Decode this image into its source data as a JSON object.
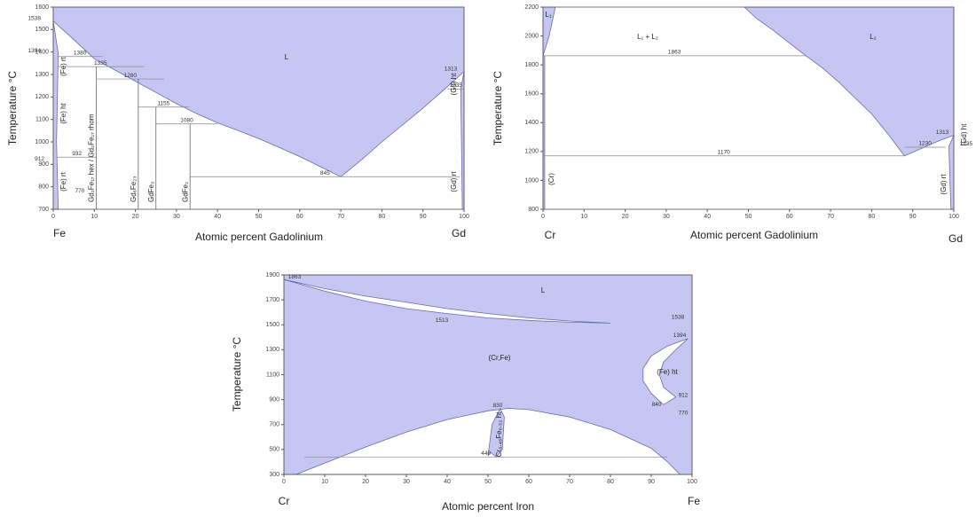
{
  "chart_data": [
    {
      "type": "phase",
      "y_label": "Temperature °C",
      "x_label": "Atomic percent Gadolinium",
      "end_labels": [
        "Fe",
        "Gd"
      ],
      "phase_color": "#c6c6f3",
      "gap_color": "#ffffff",
      "line_color": "#6a6aaa",
      "xlim": [
        0,
        100
      ],
      "ylim": [
        700,
        1600
      ],
      "xticks": [
        0,
        10,
        20,
        30,
        40,
        50,
        60,
        70,
        80,
        90,
        100
      ],
      "yticks": [
        700,
        800,
        900,
        1000,
        1100,
        1200,
        1300,
        1400,
        1500,
        1600
      ],
      "areas": [
        {
          "kind": "phase",
          "x": [
            0,
            0,
            100,
            100,
            95,
            90,
            85,
            80,
            75,
            70,
            65,
            60,
            55,
            50,
            45,
            40,
            35,
            30,
            25,
            20,
            15,
            10,
            5
          ],
          "y": [
            1538,
            1600,
            1600,
            1313,
            1230,
            1150,
            1075,
            1000,
            920,
            845,
            890,
            935,
            975,
            1015,
            1050,
            1085,
            1125,
            1170,
            1220,
            1270,
            1320,
            1370,
            1455
          ]
        },
        {
          "kind": "phase",
          "x": [
            0,
            1.2,
            0.8,
            1.2,
            0
          ],
          "y": [
            1538,
            1394,
            1000,
            700,
            700
          ]
        },
        {
          "kind": "phase",
          "x": [
            100,
            99.2,
            99.6,
            100
          ],
          "y": [
            1313,
            1235,
            700,
            700
          ]
        }
      ],
      "isotherms": [
        {
          "value": 1380,
          "x": [
            1,
            12
          ]
        },
        {
          "value": 1335,
          "x": [
            1,
            22
          ]
        },
        {
          "value": 1280,
          "x": [
            10.5,
            27
          ]
        },
        {
          "value": 1155,
          "x": [
            20.7,
            33
          ]
        },
        {
          "value": 1080,
          "x": [
            25,
            40
          ]
        },
        {
          "value": 932,
          "x": [
            1,
            10.5
          ]
        },
        {
          "value": 845,
          "x": [
            33.3,
            99
          ]
        },
        {
          "value": 1235,
          "x": [
            96,
            100
          ]
        }
      ],
      "compounds": [
        {
          "x": 10.5,
          "top": 1335,
          "label": "Gd₂Fe₁₇ hex  / Gd₂Fe₁₇ rhom"
        },
        {
          "x": 20.7,
          "top": 1280,
          "label": "Gd₆Fe₂₃"
        },
        {
          "x": 25,
          "top": 1155,
          "label": "GdFe₃"
        },
        {
          "x": 33.3,
          "top": 1080,
          "label": "GdFe₂"
        }
      ],
      "temperature_labels": [
        1538,
        1394,
        912,
        1313,
        770
      ],
      "phase_labels": [
        "L",
        "(Fe) rt",
        "(Fe) ht",
        "(Fe) rt",
        "(Gd) ht",
        "(Gd) rt"
      ]
    },
    {
      "type": "phase",
      "y_label": "Temperature °C",
      "x_label": "Atomic percent Gadolinium",
      "end_labels": [
        "Cr",
        "Gd"
      ],
      "phase_color": "#c6c6f3",
      "gap_color": "#ffffff",
      "line_color": "#6a6aaa",
      "xlim": [
        0,
        100
      ],
      "ylim": [
        800,
        2200
      ],
      "xticks": [
        0,
        10,
        20,
        30,
        40,
        50,
        60,
        70,
        80,
        90,
        100
      ],
      "yticks": [
        800,
        1000,
        1200,
        1400,
        1600,
        1800,
        2000,
        2200
      ],
      "areas": [
        {
          "kind": "phase",
          "x": [
            0,
            0,
            3,
            1.5
          ],
          "y": [
            1863,
            2200,
            2200,
            2000
          ]
        },
        {
          "kind": "phase",
          "x": [
            49,
            100,
            100,
            96,
            92,
            88,
            84,
            80,
            76,
            72,
            68,
            64,
            60,
            56,
            52
          ],
          "y": [
            2200,
            2200,
            1313,
            1270,
            1220,
            1170,
            1320,
            1460,
            1570,
            1680,
            1780,
            1863,
            1950,
            2040,
            2120
          ]
        },
        {
          "kind": "phase",
          "x": [
            100,
            98.8,
            99.3,
            100
          ],
          "y": [
            1313,
            1235,
            800,
            800
          ]
        },
        {
          "kind": "phase",
          "x": [
            0,
            0.4,
            0.4,
            0
          ],
          "y": [
            1863,
            1863,
            800,
            800
          ]
        }
      ],
      "isotherms": [
        {
          "value": 1863,
          "x": [
            0,
            64
          ]
        },
        {
          "value": 1170,
          "x": [
            0,
            88
          ]
        },
        {
          "value": 1230,
          "x": [
            88,
            98
          ]
        }
      ],
      "compounds": [],
      "temperature_labels": [
        1313,
        1235
      ],
      "phase_labels": [
        "L₁",
        "L₁   +   L₂",
        "L₂",
        "(Cr)",
        "(Gd) rt",
        "(Gd) ht"
      ]
    },
    {
      "type": "phase",
      "y_label": "Temperature °C",
      "x_label": "Atomic percent Iron",
      "end_labels": [
        "Cr",
        "Fe"
      ],
      "phase_color": "#c6c6f3",
      "gap_color": "#ffffff",
      "line_color": "#6a6aaa",
      "xlim": [
        0,
        100
      ],
      "ylim": [
        300,
        1900
      ],
      "xticks": [
        0,
        10,
        20,
        30,
        40,
        50,
        60,
        70,
        80,
        90,
        100
      ],
      "yticks": [
        300,
        500,
        700,
        900,
        1100,
        1300,
        1500,
        1700,
        1900
      ],
      "areas": [
        {
          "kind": "phase",
          "x": [
            0,
            100,
            100,
            0
          ],
          "y": [
            300,
            300,
            1900,
            1900
          ]
        },
        {
          "kind": "gap",
          "x": [
            0,
            10,
            20,
            30,
            40,
            50,
            60,
            70,
            80,
            70,
            60,
            50,
            40,
            30,
            20,
            10
          ],
          "y": [
            1863,
            1790,
            1730,
            1680,
            1630,
            1590,
            1555,
            1530,
            1513,
            1520,
            1535,
            1555,
            1590,
            1630,
            1690,
            1770
          ]
        },
        {
          "kind": "gap",
          "x": [
            99,
            94,
            90,
            88,
            88,
            90,
            93,
            96,
            93,
            92,
            93,
            96,
            99
          ],
          "y": [
            1390,
            1330,
            1250,
            1150,
            1050,
            950,
            860,
            920,
            1000,
            1100,
            1200,
            1300,
            1390
          ]
        },
        {
          "kind": "gap",
          "x": [
            3,
            10,
            20,
            30,
            40,
            50,
            55,
            60,
            70,
            80,
            90,
            94,
            97
          ],
          "y": [
            300,
            390,
            520,
            640,
            740,
            810,
            830,
            820,
            760,
            660,
            510,
            400,
            300
          ]
        },
        {
          "kind": "phase",
          "x": [
            50,
            51,
            53,
            54,
            53.5,
            52,
            50.5
          ],
          "y": [
            450,
            700,
            830,
            760,
            500,
            440,
            480
          ]
        }
      ],
      "isotherms": [
        {
          "value": 440,
          "x": [
            5,
            94
          ]
        }
      ],
      "compounds": [],
      "temperature_labels": [
        1863,
        1513,
        1538,
        1394,
        912,
        840,
        770,
        830
      ],
      "phase_labels": [
        "L",
        "(Cr,Fe)",
        "(Fe) ht",
        "Cr₀.₄₈Fe₀.₅₂ ht"
      ]
    }
  ]
}
